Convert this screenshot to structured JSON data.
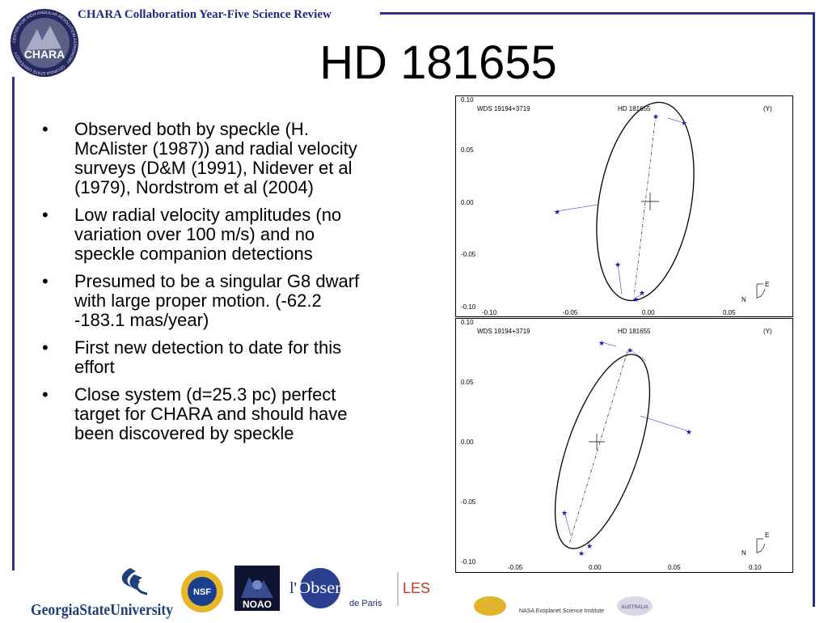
{
  "header": {
    "conference": "CHARA Collaboration Year-Five Science Review",
    "logo_text": "CHARA",
    "logo_ring_text": "CENTER FOR HIGH ANGULAR RESOLUTION ASTRONOMY · GEORGIA STATE UNIVERSITY"
  },
  "slide": {
    "title": "HD 181655",
    "bullets": [
      {
        "marker": "•",
        "text": "Observed both by speckle (H. McAlister (1987)) and radial velocity surveys (D&M (1991), Nidever et al (1979), Nordstrom et al (2004)"
      },
      {
        "marker": "•",
        "text": "Low radial velocity amplitudes (no variation over 100 m/s) and no speckle companion detections"
      },
      {
        "marker": "•",
        "text": "Presumed to be a singular G8 dwarf with large proper motion. (-62.2 -183.1 mas/year)"
      },
      {
        "marker": "•",
        "text": "First new detection to date for this effort"
      },
      {
        "marker": "•",
        "text": "Close system (d=25.3 pc) perfect target for CHARA and should have been discovered by speckle"
      }
    ]
  },
  "plots": [
    {
      "wds": "WDS 19194+3719",
      "star": "HD 181655",
      "unit": "(Y)",
      "x_ticks": [
        "-0.10",
        "-0.05",
        "0.00",
        "0.05"
      ],
      "y_ticks": [
        "0.10",
        "0.05",
        "0.00",
        "-0.05",
        "-0.10"
      ],
      "compass_e": "E",
      "compass_n": "N"
    },
    {
      "wds": "WDS 19194+3719",
      "star": "HD 181655",
      "unit": "(Y)",
      "x_ticks": [
        "-0.05",
        "0.00",
        "0.05",
        "0.10"
      ],
      "y_ticks": [
        "0.10",
        "0.05",
        "0.00",
        "-0.05",
        "-0.10"
      ],
      "compass_e": "E",
      "compass_n": "N"
    }
  ],
  "footer": {
    "gsu": "GeorgiaStateUniversity",
    "nsf": "NSF",
    "noao": "NOAO",
    "obs_l": "l'",
    "obs_main": "Observatoire",
    "obs_sub": "de Paris",
    "les": "LES",
    "nasa_text": "NASA Exoplanet Science Institute",
    "aus_text": "AUSTRALIA"
  },
  "colors": {
    "frame": "#2b2f86",
    "header_text": "#1f2a78",
    "star_markers": "#1a1aa6",
    "gsu_blue": "#1d3f7a"
  }
}
